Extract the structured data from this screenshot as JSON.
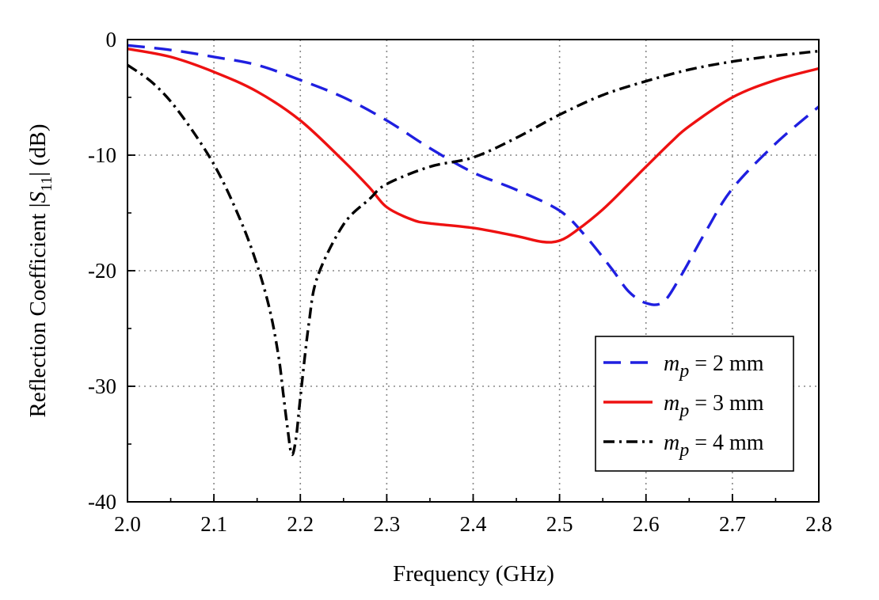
{
  "chart_data": {
    "type": "line",
    "xlabel": "Frequency (GHz)",
    "ylabel_parts": {
      "prefix": "Reflection Coefficient |",
      "symbol": "S",
      "subscript": "11",
      "suffix": "| (dB)"
    },
    "xlim": [
      2.0,
      2.8
    ],
    "ylim": [
      -40,
      0
    ],
    "xticks": [
      "2.0",
      "2.1",
      "2.2",
      "2.3",
      "2.4",
      "2.5",
      "2.6",
      "2.7",
      "2.8"
    ],
    "yticks": [
      "0",
      "-10",
      "-20",
      "-30",
      "-40"
    ],
    "grid": true,
    "legend_position": "bottom-right",
    "series": [
      {
        "name": "m_p = 2 mm",
        "legend": {
          "var": "m",
          "sub": "p",
          "text": " = 2 mm"
        },
        "color": "#1f1fe0",
        "style": "dashed",
        "x": [
          2.0,
          2.05,
          2.1,
          2.15,
          2.2,
          2.25,
          2.3,
          2.35,
          2.4,
          2.45,
          2.5,
          2.53,
          2.56,
          2.58,
          2.6,
          2.62,
          2.64,
          2.67,
          2.7,
          2.75,
          2.8
        ],
        "y": [
          -0.5,
          -0.9,
          -1.5,
          -2.2,
          -3.5,
          -5.0,
          -7.0,
          -9.4,
          -11.5,
          -13.0,
          -14.8,
          -17.0,
          -19.8,
          -21.8,
          -22.8,
          -22.7,
          -20.5,
          -16.5,
          -12.9,
          -9.0,
          -5.8
        ]
      },
      {
        "name": "m_p = 3 mm",
        "legend": {
          "var": "m",
          "sub": "p",
          "text": " = 3 mm"
        },
        "color": "#ee1111",
        "style": "solid",
        "x": [
          2.0,
          2.05,
          2.1,
          2.15,
          2.2,
          2.25,
          2.28,
          2.3,
          2.33,
          2.35,
          2.4,
          2.45,
          2.48,
          2.5,
          2.52,
          2.55,
          2.58,
          2.6,
          2.63,
          2.65,
          2.7,
          2.75,
          2.8
        ],
        "y": [
          -0.8,
          -1.5,
          -2.8,
          -4.5,
          -7.0,
          -10.5,
          -12.8,
          -14.5,
          -15.6,
          -15.9,
          -16.3,
          -17.0,
          -17.5,
          -17.4,
          -16.5,
          -14.7,
          -12.5,
          -11.0,
          -8.8,
          -7.5,
          -5.0,
          -3.5,
          -2.5
        ]
      },
      {
        "name": "m_p = 4 mm",
        "legend": {
          "var": "m",
          "sub": "p",
          "text": " = 4 mm"
        },
        "color": "#000000",
        "style": "dashdot",
        "x": [
          2.0,
          2.03,
          2.06,
          2.1,
          2.13,
          2.15,
          2.165,
          2.175,
          2.18,
          2.185,
          2.19,
          2.195,
          2.2,
          2.21,
          2.22,
          2.25,
          2.28,
          2.3,
          2.35,
          2.4,
          2.45,
          2.5,
          2.55,
          2.6,
          2.65,
          2.7,
          2.75,
          2.8
        ],
        "y": [
          -2.2,
          -3.8,
          -6.3,
          -10.8,
          -15.5,
          -19.5,
          -23.5,
          -27.5,
          -30.5,
          -33.5,
          -35.9,
          -34.5,
          -31.0,
          -24.5,
          -20.5,
          -16.0,
          -13.8,
          -12.5,
          -11.0,
          -10.2,
          -8.5,
          -6.5,
          -4.8,
          -3.6,
          -2.6,
          -1.9,
          -1.4,
          -1.0
        ]
      }
    ]
  }
}
